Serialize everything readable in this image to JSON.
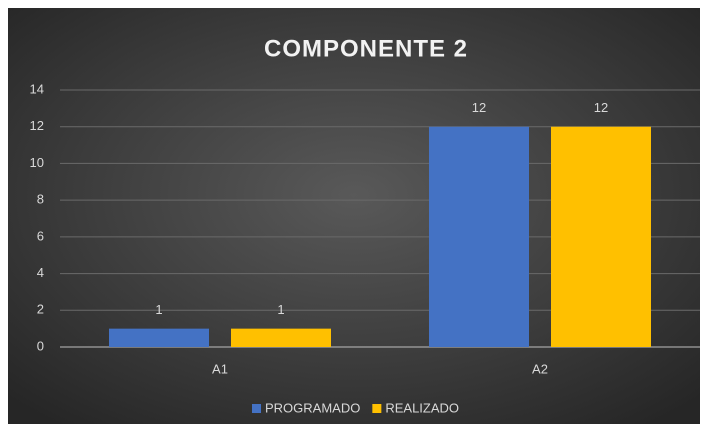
{
  "chart_data": {
    "type": "bar",
    "title": "COMPONENTE  2",
    "categories": [
      "A1",
      "A2"
    ],
    "series": [
      {
        "name": "PROGRAMADO",
        "color": "#4472c4",
        "values": [
          1,
          12
        ]
      },
      {
        "name": "REALIZADO",
        "color": "#ffc000",
        "values": [
          1,
          12
        ]
      }
    ],
    "ylim": [
      0,
      14
    ],
    "yticks": [
      0,
      2,
      4,
      6,
      8,
      10,
      12,
      14
    ],
    "grid": true,
    "legend": "bottom",
    "data_labels": true
  }
}
